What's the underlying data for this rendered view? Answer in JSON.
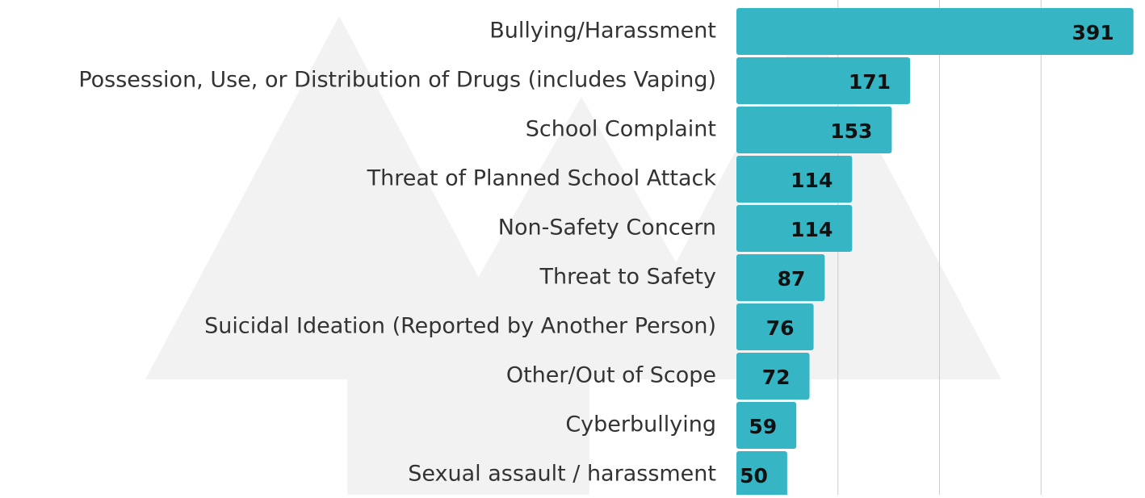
{
  "chart_data": {
    "type": "bar",
    "orientation": "horizontal",
    "categories": [
      "Bullying/Harassment",
      "Possession, Use, or Distribution of Drugs (includes Vaping)",
      "School Complaint",
      "Threat of Planned School Attack",
      "Non-Safety Concern",
      "Threat to Safety",
      "Suicidal Ideation (Reported by Another Person)",
      "Other/Out of Scope",
      "Cyberbullying",
      "Sexual assault / harassment"
    ],
    "values": [
      391,
      171,
      153,
      114,
      114,
      87,
      76,
      72,
      59,
      50
    ],
    "color": "#36b5c4",
    "xlim": [
      0,
      400
    ],
    "xticks": [
      100,
      200,
      300
    ],
    "grid": true
  }
}
